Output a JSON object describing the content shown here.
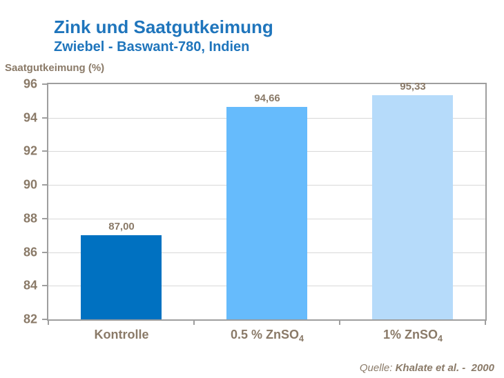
{
  "header": {
    "title": "Zink und Saatgutkeimung",
    "subtitle": "Zwiebel - Baswant-780, Indien"
  },
  "source": {
    "prefix": "Quelle: ",
    "citation": "Khalate et al. -  2000"
  },
  "colors": {
    "title_blue": "#1F75BC",
    "text_taupe": "#8A7A68",
    "axis_gray": "#9E9E9E",
    "gridline_gray": "#D8D8D8"
  },
  "chart_data": {
    "type": "bar",
    "title": "Zink und Saatgutkeimung",
    "subtitle": "Zwiebel - Baswant-780, Indien",
    "ylabel": "Saatgutkeimung (%)",
    "xlabel": "",
    "ylim": [
      82,
      96
    ],
    "yticks": [
      82,
      84,
      86,
      88,
      90,
      92,
      94,
      96
    ],
    "grid": true,
    "legend": "none",
    "categories": [
      {
        "base": "Kontrolle",
        "sub": ""
      },
      {
        "base": "0.5 % ZnSO",
        "sub": "4"
      },
      {
        "base": "1% ZnSO",
        "sub": "4"
      }
    ],
    "values": [
      87.0,
      94.66,
      95.33
    ],
    "value_labels": [
      "87,00",
      "94,66",
      "95,33"
    ],
    "bar_colors": [
      "#0071C1",
      "#66BBFC",
      "#B6DBFA"
    ]
  }
}
